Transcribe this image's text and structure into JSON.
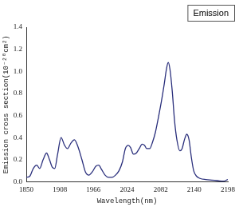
{
  "chart_data": {
    "type": "line",
    "title": "Emission",
    "x_label": "Wavelength(nm)",
    "y_label": "Emission cross section(10⁻²⁰cm²)",
    "x": [
      1850,
      1856,
      1862,
      1868,
      1873,
      1879,
      1885,
      1890,
      1895,
      1899,
      1904,
      1910,
      1916,
      1921,
      1927,
      1933,
      1939,
      1946,
      1952,
      1958,
      1964,
      1970,
      1975,
      1980,
      1986,
      1992,
      1998,
      2004,
      2010,
      2016,
      2021,
      2026,
      2030,
      2035,
      2040,
      2045,
      2050,
      2054,
      2058,
      2063,
      2068,
      2073,
      2078,
      2083,
      2088,
      2092,
      2095,
      2098,
      2102,
      2106,
      2110,
      2115,
      2119,
      2123,
      2127,
      2131,
      2135,
      2139,
      2144,
      2150,
      2160,
      2170,
      2180,
      2190,
      2198
    ],
    "values": [
      0.04,
      0.05,
      0.12,
      0.15,
      0.12,
      0.2,
      0.26,
      0.2,
      0.13,
      0.12,
      0.25,
      0.4,
      0.33,
      0.3,
      0.35,
      0.38,
      0.32,
      0.2,
      0.09,
      0.06,
      0.09,
      0.14,
      0.15,
      0.11,
      0.06,
      0.04,
      0.04,
      0.06,
      0.1,
      0.18,
      0.3,
      0.33,
      0.31,
      0.25,
      0.26,
      0.3,
      0.34,
      0.33,
      0.3,
      0.3,
      0.36,
      0.45,
      0.58,
      0.72,
      0.88,
      1.02,
      1.08,
      1.02,
      0.82,
      0.55,
      0.38,
      0.28,
      0.3,
      0.38,
      0.43,
      0.38,
      0.22,
      0.1,
      0.05,
      0.03,
      0.02,
      0.015,
      0.01,
      0.005,
      0.02
    ],
    "color": "#2a2f7c",
    "xlim": [
      1850,
      2198
    ],
    "xticks": [
      1850,
      1908,
      1966,
      2024,
      2082,
      2140,
      2198
    ],
    "ylim": [
      0,
      1.4
    ],
    "yticks": [
      {
        "value": 0,
        "label": "0.0"
      },
      0.2,
      0.4,
      0.6,
      0.8,
      {
        "value": 1,
        "label": "1.0"
      },
      1.2,
      1.4
    ],
    "grid": false
  }
}
